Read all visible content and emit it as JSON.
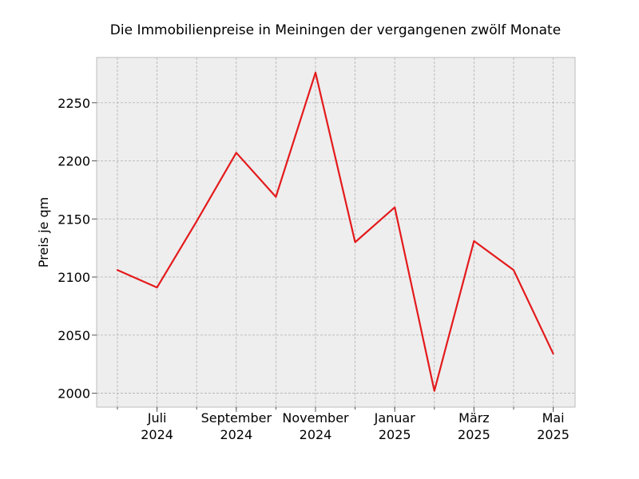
{
  "chart_data": {
    "type": "line",
    "title": "Die Immobilienpreise in Meiningen der vergangenen zwölf Monate",
    "xlabel": "",
    "ylabel": "Preis je qm",
    "ylim": [
      1988,
      2289
    ],
    "yticks": [
      2000,
      2050,
      2100,
      2150,
      2200,
      2250
    ],
    "x": [
      "2024-06",
      "2024-07",
      "2024-08",
      "2024-09",
      "2024-10",
      "2024-11",
      "2024-12",
      "2025-01",
      "2025-02",
      "2025-03",
      "2025-04",
      "2025-05"
    ],
    "xticks": [
      {
        "x": "2024-07",
        "line1": "Juli",
        "line2": "2024"
      },
      {
        "x": "2024-09",
        "line1": "September",
        "line2": "2024"
      },
      {
        "x": "2024-11",
        "line1": "November",
        "line2": "2024"
      },
      {
        "x": "2025-01",
        "line1": "Januar",
        "line2": "2025"
      },
      {
        "x": "2025-03",
        "line1": "März",
        "line2": "2025"
      },
      {
        "x": "2025-05",
        "line1": "Mai",
        "line2": "2025"
      }
    ],
    "series": [
      {
        "values": [
          2106,
          2091,
          2148,
          2207,
          2169,
          2276,
          2130,
          2160,
          2002,
          2131,
          2106,
          2034
        ],
        "color": "#e41a1c"
      }
    ],
    "grid": true,
    "background": "#eeeeee"
  }
}
